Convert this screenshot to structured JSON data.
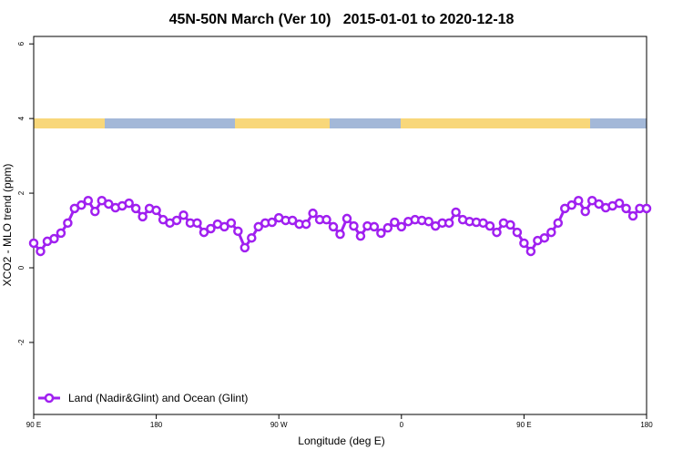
{
  "chart_data": {
    "type": "line",
    "title": "45N-50N March (Ver 10)   2015-01-01 to 2020-12-18",
    "x_label": "Longitude (deg E)",
    "y_label": "XCO2 - MLO trend (ppm)",
    "x": [
      90,
      95,
      100,
      105,
      110,
      115,
      120,
      125,
      130,
      135,
      140,
      145,
      150,
      155,
      160,
      165,
      170,
      175,
      180,
      185,
      190,
      195,
      200,
      205,
      210,
      215,
      220,
      225,
      230,
      235,
      240,
      245,
      250,
      255,
      260,
      265,
      270,
      275,
      280,
      285,
      290,
      295,
      300,
      305,
      310,
      315,
      320,
      325,
      330,
      335,
      340,
      345,
      350,
      355,
      360,
      365,
      370,
      375,
      380,
      385,
      390,
      395,
      400,
      405,
      410,
      415,
      420,
      425,
      430,
      435,
      440,
      445,
      450,
      455,
      460,
      465,
      470,
      475,
      480,
      485,
      490,
      495,
      500,
      505,
      510,
      515,
      520,
      525,
      530,
      535,
      540
    ],
    "series": [
      {
        "name": "Land (Nadir&Glint) and Ocean (Glint)",
        "color": "#a020f0",
        "values": [
          0.66,
          0.44,
          0.71,
          0.78,
          0.93,
          1.2,
          1.59,
          1.68,
          1.8,
          1.51,
          1.8,
          1.71,
          1.61,
          1.66,
          1.73,
          1.59,
          1.37,
          1.59,
          1.54,
          1.29,
          1.2,
          1.27,
          1.41,
          1.2,
          1.2,
          0.95,
          1.05,
          1.17,
          1.1,
          1.2,
          0.98,
          0.54,
          0.8,
          1.1,
          1.2,
          1.22,
          1.34,
          1.27,
          1.27,
          1.17,
          1.17,
          1.46,
          1.29,
          1.29,
          1.1,
          0.9,
          1.32,
          1.12,
          0.85,
          1.12,
          1.1,
          0.93,
          1.07,
          1.22,
          1.1,
          1.24,
          1.29,
          1.27,
          1.24,
          1.12,
          1.2,
          1.2,
          1.49,
          1.29,
          1.24,
          1.22,
          1.2,
          1.12,
          0.95,
          1.2,
          1.15,
          0.95,
          0.66,
          0.44,
          0.73,
          0.8,
          0.95,
          1.2,
          1.59,
          1.68,
          1.8,
          1.51,
          1.8,
          1.71,
          1.61,
          1.66,
          1.73,
          1.59,
          1.39,
          1.59,
          1.59
        ]
      }
    ],
    "xlim": [
      90,
      540
    ],
    "xticks": [
      {
        "value": 90,
        "label": "90 E"
      },
      180,
      {
        "value": 270,
        "label": "90 W"
      },
      {
        "value": 360,
        "label": "0"
      },
      {
        "value": 450,
        "label": "90 E"
      },
      {
        "value": 540,
        "label": "180"
      }
    ],
    "ylim": [
      -3.93,
      6.2
    ],
    "yticks": [
      -2,
      0,
      2,
      4,
      6
    ],
    "legend": "bottom-left"
  }
}
